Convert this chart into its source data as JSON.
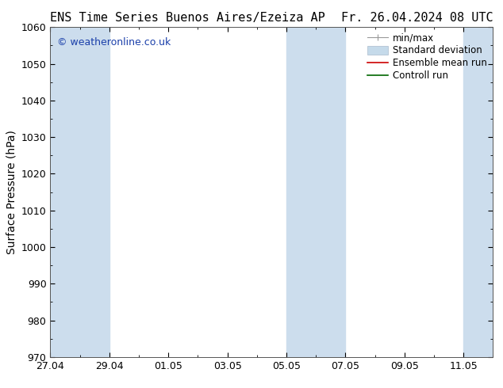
{
  "title_left": "ENS Time Series Buenos Aires/Ezeiza AP",
  "title_right": "Fr. 26.04.2024 08 UTC",
  "ylabel": "Surface Pressure (hPa)",
  "ylim": [
    970,
    1060
  ],
  "yticks": [
    970,
    980,
    990,
    1000,
    1010,
    1020,
    1030,
    1040,
    1050,
    1060
  ],
  "xtick_labels": [
    "27.04",
    "29.04",
    "01.05",
    "03.05",
    "05.05",
    "07.05",
    "09.05",
    "11.05"
  ],
  "xtick_positions": [
    0,
    2,
    4,
    6,
    8,
    10,
    12,
    14
  ],
  "xlim": [
    0,
    15
  ],
  "band_ranges": [
    [
      0,
      2
    ],
    [
      8,
      10
    ],
    [
      14,
      15
    ]
  ],
  "shaded_color": "#ccdded",
  "background_color": "#ffffff",
  "watermark": "© weatheronline.co.uk",
  "watermark_color": "#1a3faa",
  "title_fontsize": 11,
  "ylabel_fontsize": 10,
  "tick_fontsize": 9,
  "legend_fontsize": 8.5,
  "legend_items": [
    {
      "label": "min/max",
      "type": "minmax"
    },
    {
      "label": "Standard deviation",
      "type": "patch",
      "color": "#c5daea"
    },
    {
      "label": "Ensemble mean run",
      "type": "line",
      "color": "#cc0000"
    },
    {
      "label": "Controll run",
      "type": "line",
      "color": "#006600"
    }
  ]
}
